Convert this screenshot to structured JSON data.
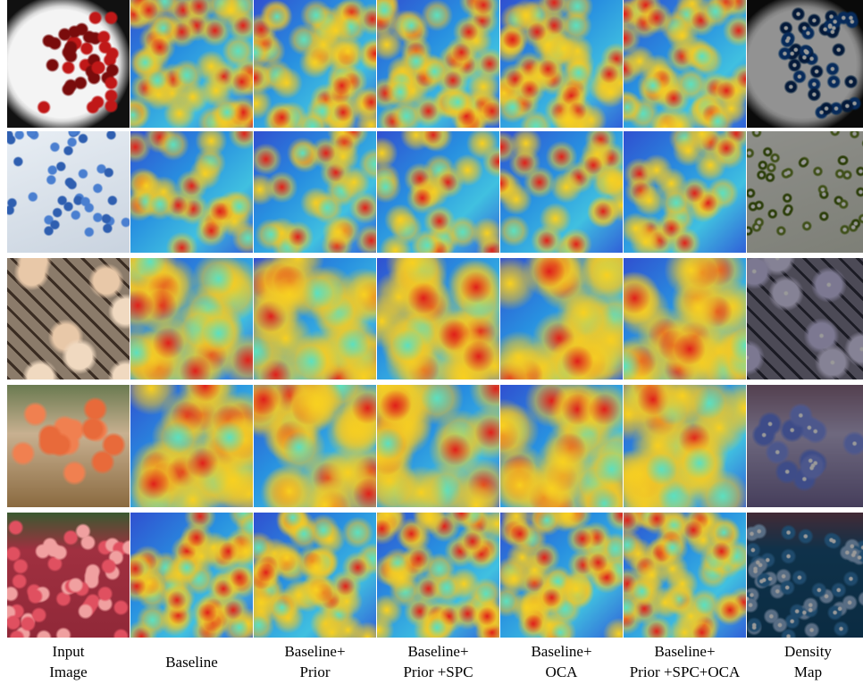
{
  "column_labels": [
    [
      "Input",
      "Image"
    ],
    [
      "Baseline"
    ],
    [
      "Baseline+",
      "Prior"
    ],
    [
      "Baseline+",
      "Prior +SPC"
    ],
    [
      "Baseline+",
      "OCA"
    ],
    [
      "Baseline+",
      "Prior +SPC+OCA"
    ],
    [
      "Density",
      "Map"
    ]
  ]
}
